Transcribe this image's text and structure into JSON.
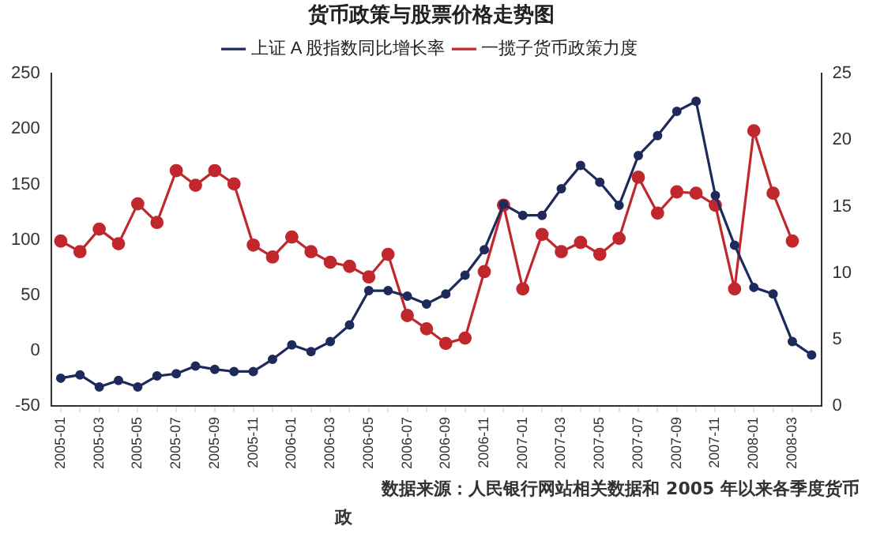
{
  "chart_data": {
    "type": "line",
    "title": "货币政策与股票价格走势图",
    "categories": [
      "2005-01",
      null,
      "2005-03",
      null,
      "2005-05",
      null,
      "2005-07",
      null,
      "2005-09",
      null,
      "2005-11",
      null,
      "2006-01",
      null,
      "2006-03",
      null,
      "2006-05",
      null,
      "2006-07",
      null,
      "2006-09",
      null,
      "2006-11",
      null,
      "2007-01",
      null,
      "2007-03",
      null,
      "2007-05",
      null,
      "2007-07",
      null,
      "2007-09",
      null,
      "2007-11",
      null,
      "2008-01",
      null,
      "2008-03",
      null
    ],
    "series": [
      {
        "name": "上证 A 股指数同比增长率",
        "color": "#1f2a5c",
        "values": [
          -25,
          -22,
          -33,
          -27,
          -33,
          -23,
          -21,
          -14,
          -17,
          -19,
          -19,
          -8,
          5,
          -1,
          8,
          23,
          54,
          54,
          49,
          42,
          51,
          68,
          91,
          132,
          122,
          122,
          146,
          167,
          152,
          131,
          176,
          194,
          216,
          225,
          140,
          95,
          57,
          51,
          8,
          -4
        ]
      },
      {
        "name": "一揽子货币政策力度",
        "color": "#c0282d",
        "axis": "y2",
        "values": [
          12.4,
          11.6,
          13.3,
          12.2,
          15.2,
          13.8,
          17.7,
          16.6,
          17.7,
          16.7,
          12.1,
          11.2,
          12.7,
          11.6,
          10.8,
          10.5,
          9.7,
          11.4,
          6.8,
          5.8,
          4.7,
          5.1,
          10.1,
          15.1,
          8.8,
          12.9,
          11.6,
          12.3,
          11.4,
          12.6,
          17.2,
          14.5,
          16.1,
          16.0,
          15.1,
          8.8,
          20.7,
          16.0,
          12.4,
          null
        ]
      }
    ],
    "ylim": [
      -50,
      250
    ],
    "yticks": [
      -50,
      0,
      50,
      100,
      150,
      200,
      250
    ],
    "y2lim": [
      0,
      25
    ],
    "y2ticks": [
      0,
      5,
      10,
      15,
      20,
      25
    ],
    "marker": "circle",
    "legend": "top",
    "grid": false,
    "annotations": [
      "数据来源：人民银行网站相关数据和 2005 年以来各季度货币",
      "政"
    ]
  }
}
